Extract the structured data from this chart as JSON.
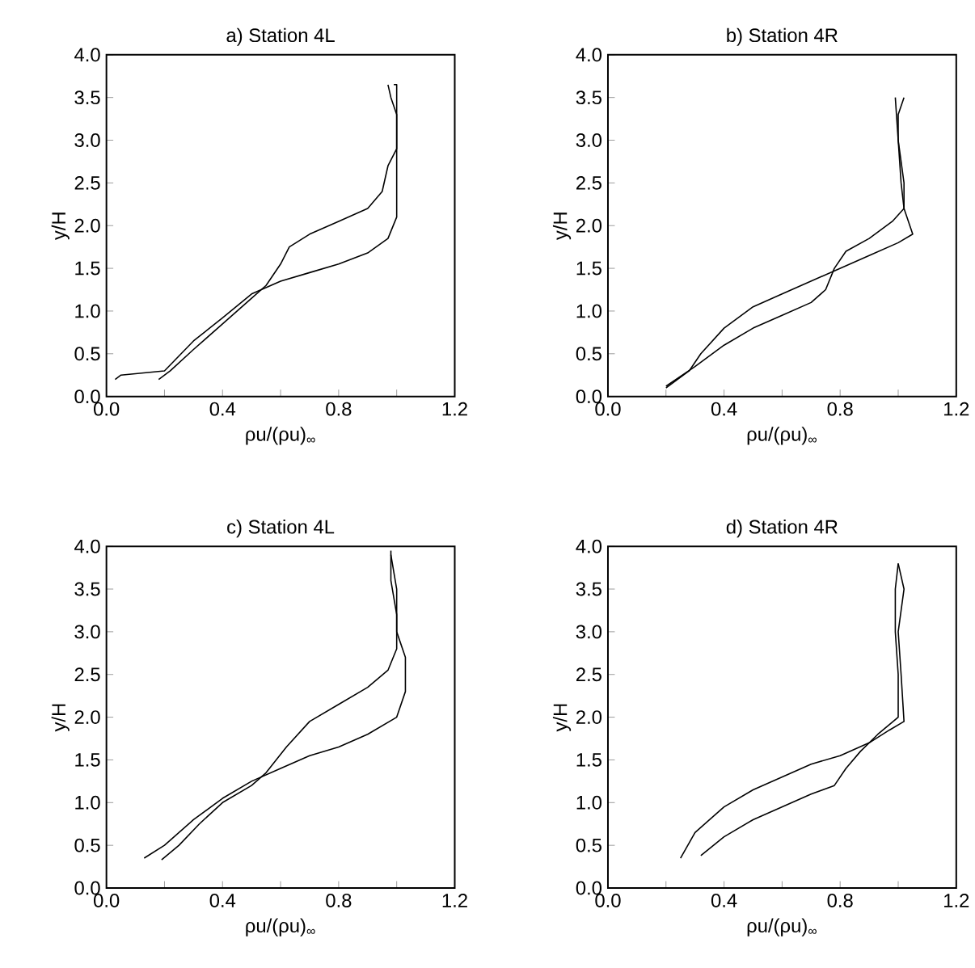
{
  "chart_data": [
    {
      "type": "line",
      "title": "a) Station 4L",
      "xlabel": "ρu/(ρu)$_{∞}$",
      "ylabel": "y/H",
      "xlim": [
        0,
        1.2
      ],
      "ylim": [
        0,
        4
      ],
      "xticks": [
        {
          "value": 0,
          "label": "0.0"
        },
        {
          "value": 0.2,
          "label": null
        },
        0.4,
        {
          "value": 0.6,
          "label": null
        },
        0.8,
        {
          "value": 1.0,
          "label": null
        },
        1.2
      ],
      "yticks": [
        {
          "value": 0,
          "label": "0.0"
        },
        0.5,
        {
          "value": 1,
          "label": "1.0"
        },
        1.5,
        {
          "value": 2,
          "label": "2.0"
        },
        2.5,
        {
          "value": 3,
          "label": "3.0"
        },
        3.5,
        {
          "value": 4,
          "label": "4.0"
        }
      ],
      "series": [
        {
          "color": "#000000",
          "x": [
            0.03,
            0.05,
            0.2,
            0.3,
            0.4,
            0.5,
            0.6,
            0.7,
            0.8,
            0.9,
            0.97,
            1.0,
            1.0,
            1.0,
            1.0,
            1.0,
            0.99
          ],
          "values": [
            0.2,
            0.25,
            0.3,
            0.65,
            0.92,
            1.2,
            1.35,
            1.45,
            1.55,
            1.68,
            1.85,
            2.1,
            2.5,
            3.0,
            3.3,
            3.65,
            3.65
          ]
        },
        {
          "color": "#000000",
          "x": [
            0.18,
            0.22,
            0.3,
            0.4,
            0.5,
            0.55,
            0.6,
            0.63,
            0.7,
            0.8,
            0.9,
            0.95,
            0.97,
            1.0,
            1.0,
            0.98,
            0.97
          ],
          "values": [
            0.2,
            0.3,
            0.55,
            0.85,
            1.15,
            1.3,
            1.55,
            1.75,
            1.9,
            2.05,
            2.2,
            2.4,
            2.7,
            2.9,
            3.3,
            3.5,
            3.65
          ]
        }
      ]
    },
    {
      "type": "line",
      "title": "b) Station 4R",
      "xlabel": "ρu/(ρu)$_{∞}$",
      "ylabel": "y/H",
      "xlim": [
        0,
        1.2
      ],
      "ylim": [
        0,
        4
      ],
      "xticks": [
        {
          "value": 0,
          "label": "0.0"
        },
        {
          "value": 0.2,
          "label": null
        },
        0.4,
        {
          "value": 0.6,
          "label": null
        },
        0.8,
        {
          "value": 1.0,
          "label": null
        },
        1.2
      ],
      "yticks": [
        {
          "value": 0,
          "label": "0.0"
        },
        0.5,
        {
          "value": 1,
          "label": "1.0"
        },
        1.5,
        {
          "value": 2,
          "label": "2.0"
        },
        2.5,
        {
          "value": 3,
          "label": "3.0"
        },
        3.5,
        {
          "value": 4,
          "label": "4.0"
        }
      ],
      "series": [
        {
          "color": "#000000",
          "x": [
            0.2,
            0.28,
            0.32,
            0.4,
            0.5,
            0.6,
            0.7,
            0.8,
            0.9,
            1.0,
            1.05,
            1.04,
            1.02,
            1.01,
            1.0,
            0.99
          ],
          "values": [
            0.1,
            0.3,
            0.5,
            0.8,
            1.05,
            1.2,
            1.35,
            1.5,
            1.65,
            1.8,
            1.9,
            2.0,
            2.2,
            2.5,
            3.0,
            3.5
          ]
        },
        {
          "color": "#000000",
          "x": [
            0.2,
            0.3,
            0.4,
            0.5,
            0.6,
            0.7,
            0.75,
            0.78,
            0.82,
            0.9,
            0.98,
            1.02,
            1.02,
            1.0,
            1.0,
            1.02
          ],
          "values": [
            0.12,
            0.35,
            0.6,
            0.8,
            0.95,
            1.1,
            1.25,
            1.5,
            1.7,
            1.85,
            2.05,
            2.2,
            2.5,
            3.0,
            3.3,
            3.5
          ]
        }
      ]
    },
    {
      "type": "line",
      "title": "c) Station 4L",
      "xlabel": "ρu/(ρu)$_{∞}$",
      "ylabel": "y/H",
      "xlim": [
        0,
        1.2
      ],
      "ylim": [
        0,
        4
      ],
      "xticks": [
        {
          "value": 0,
          "label": "0.0"
        },
        {
          "value": 0.2,
          "label": null
        },
        0.4,
        {
          "value": 0.6,
          "label": null
        },
        0.8,
        {
          "value": 1.0,
          "label": null
        },
        1.2
      ],
      "yticks": [
        {
          "value": 0,
          "label": "0.0"
        },
        0.5,
        {
          "value": 1,
          "label": "1.0"
        },
        1.5,
        {
          "value": 2,
          "label": "2.0"
        },
        2.5,
        {
          "value": 3,
          "label": "3.0"
        },
        3.5,
        {
          "value": 4,
          "label": "4.0"
        }
      ],
      "series": [
        {
          "color": "#000000",
          "x": [
            0.13,
            0.2,
            0.3,
            0.4,
            0.5,
            0.6,
            0.7,
            0.8,
            0.9,
            1.0,
            1.03,
            1.03,
            1.0,
            1.0,
            0.98
          ],
          "values": [
            0.35,
            0.5,
            0.8,
            1.05,
            1.25,
            1.4,
            1.55,
            1.65,
            1.8,
            2.0,
            2.3,
            2.7,
            3.0,
            3.5,
            3.9
          ]
        },
        {
          "color": "#000000",
          "x": [
            0.19,
            0.25,
            0.32,
            0.4,
            0.5,
            0.55,
            0.62,
            0.7,
            0.8,
            0.9,
            0.97,
            1.0,
            1.0,
            0.98,
            0.98
          ],
          "values": [
            0.33,
            0.5,
            0.75,
            1.0,
            1.2,
            1.35,
            1.65,
            1.95,
            2.15,
            2.35,
            2.55,
            2.8,
            3.2,
            3.6,
            3.95
          ]
        }
      ]
    },
    {
      "type": "line",
      "title": "d) Station 4R",
      "xlabel": "ρu/(ρu)$_{∞}$",
      "ylabel": "y/H",
      "xlim": [
        0,
        1.2
      ],
      "ylim": [
        0,
        4
      ],
      "xticks": [
        {
          "value": 0,
          "label": "0.0"
        },
        {
          "value": 0.2,
          "label": null
        },
        0.4,
        {
          "value": 0.6,
          "label": null
        },
        0.8,
        {
          "value": 1.0,
          "label": null
        },
        1.2
      ],
      "yticks": [
        {
          "value": 0,
          "label": "0.0"
        },
        0.5,
        {
          "value": 1,
          "label": "1.0"
        },
        1.5,
        {
          "value": 2,
          "label": "2.0"
        },
        2.5,
        {
          "value": 3,
          "label": "3.0"
        },
        3.5,
        {
          "value": 4,
          "label": "4.0"
        }
      ],
      "series": [
        {
          "color": "#000000",
          "x": [
            0.25,
            0.3,
            0.4,
            0.5,
            0.6,
            0.7,
            0.8,
            0.9,
            0.97,
            1.02,
            1.01,
            1.0,
            1.02,
            1.0
          ],
          "values": [
            0.35,
            0.65,
            0.95,
            1.15,
            1.3,
            1.45,
            1.55,
            1.7,
            1.85,
            1.95,
            2.5,
            3.0,
            3.5,
            3.8
          ]
        },
        {
          "color": "#000000",
          "x": [
            0.32,
            0.4,
            0.5,
            0.6,
            0.7,
            0.78,
            0.82,
            0.87,
            0.93,
            1.0,
            1.0,
            0.99,
            0.99,
            1.0
          ],
          "values": [
            0.38,
            0.6,
            0.8,
            0.95,
            1.1,
            1.2,
            1.4,
            1.6,
            1.8,
            2.0,
            2.5,
            3.0,
            3.5,
            3.8
          ]
        }
      ]
    }
  ]
}
